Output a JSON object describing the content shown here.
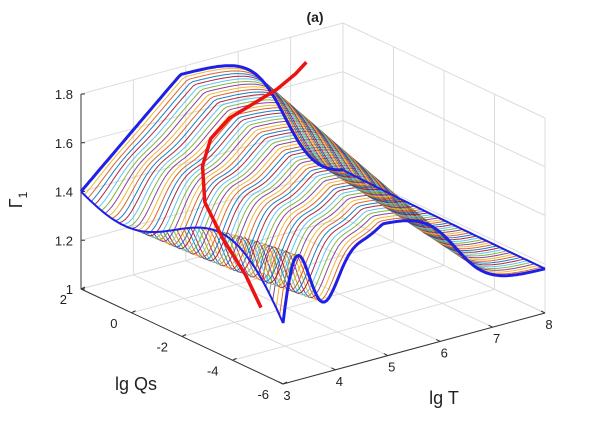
{
  "chart_data": {
    "type": "surface3d",
    "title": "(a)",
    "xlabel": "lg T",
    "ylabel": "lg Qs",
    "zlabel": "Γ₁",
    "zlabel_main": "Γ",
    "zlabel_sub": "1",
    "xlim": [
      3,
      8
    ],
    "ylim": [
      -6,
      2
    ],
    "zlim": [
      1,
      1.8
    ],
    "xticks": [
      "3",
      "4",
      "5",
      "6",
      "7",
      "8"
    ],
    "yticks": [
      "2",
      "0",
      "-2",
      "-4",
      "-6"
    ],
    "zticks": [
      "1",
      "1.2",
      "1.4",
      "1.6",
      "1.8"
    ],
    "grid": true,
    "num_curves": 60,
    "edge_color": "#1f1fe6",
    "highlight_color": "#ee1111",
    "highlight_curve": [
      {
        "lgT": 4.7,
        "lgQs": -1.6,
        "gamma": 1.0
      },
      {
        "lgT": 4.6,
        "lgQs": -1.2,
        "gamma": 1.12
      },
      {
        "lgT": 4.45,
        "lgQs": -0.6,
        "gamma": 1.25
      },
      {
        "lgT": 4.35,
        "lgQs": -0.1,
        "gamma": 1.38
      },
      {
        "lgT": 4.5,
        "lgQs": 0.3,
        "gamma": 1.5
      },
      {
        "lgT": 4.8,
        "lgQs": 0.6,
        "gamma": 1.58
      },
      {
        "lgT": 5.3,
        "lgQs": 0.9,
        "gamma": 1.62
      },
      {
        "lgT": 5.9,
        "lgQs": 1.2,
        "gamma": 1.63
      },
      {
        "lgT": 6.5,
        "lgQs": 1.5,
        "gamma": 1.64
      },
      {
        "lgT": 7.0,
        "lgQs": 1.8,
        "gamma": 1.66
      },
      {
        "lgT": 7.3,
        "lgQs": 2.0,
        "gamma": 1.68
      }
    ],
    "series_colors": [
      "#0072bd",
      "#d95319",
      "#edb120",
      "#7e2f8e",
      "#77ac30",
      "#4dbeee",
      "#a2142f"
    ]
  }
}
